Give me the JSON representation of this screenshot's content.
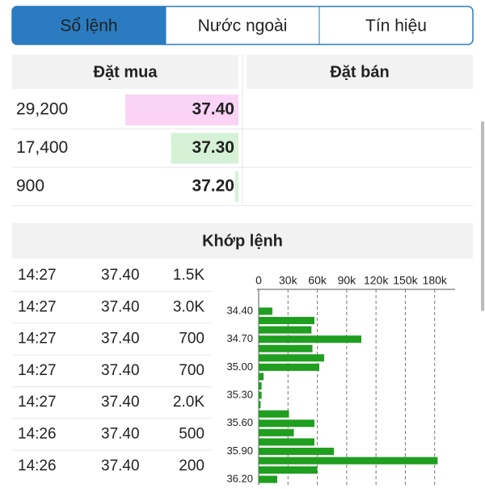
{
  "tabs": [
    {
      "label": "Sổ lệnh",
      "active": true
    },
    {
      "label": "Nước ngoài",
      "active": false
    },
    {
      "label": "Tín hiệu",
      "active": false
    }
  ],
  "order_book": {
    "bid_header": "Đặt mua",
    "ask_header": "Đặt bán",
    "bids": [
      {
        "quantity": {
          "value": 29200,
          "label": "29,200"
        },
        "price": "37.40",
        "color": "#e31fd0",
        "bar_color": "#fbd3f6"
      },
      {
        "quantity": {
          "value": 17400,
          "label": "17,400"
        },
        "price": "37.30",
        "color": "#1ca81c",
        "bar_color": "#d6f2d6"
      },
      {
        "quantity": 900,
        "price": "37.20",
        "color": "#1ca81c",
        "bar_color": "#d6f2d6"
      }
    ]
  },
  "matched": {
    "title": "Khớp lệnh",
    "price_color": "#d52fd0",
    "rows": [
      [
        "14:27",
        "37.40",
        "1.5K"
      ],
      [
        "14:27",
        "37.40",
        "3.0K"
      ],
      [
        "14:27",
        "37.40",
        "700"
      ],
      [
        "14:27",
        "37.40",
        "700"
      ],
      [
        "14:27",
        "37.40",
        "2.0K"
      ],
      [
        "14:26",
        "37.40",
        "500"
      ],
      [
        "14:26",
        "37.40",
        "200"
      ]
    ]
  },
  "chart_data": {
    "type": "bar",
    "orientation": "horizontal",
    "color": "#1f9e1f",
    "grid": true,
    "categories": [
      "34.40",
      null,
      null,
      "34.70",
      null,
      null,
      "35.00",
      null,
      null,
      "35.30",
      null,
      null,
      "35.60",
      null,
      null,
      "35.90",
      null,
      null,
      "36.20"
    ],
    "values": [
      14000,
      57000,
      54000,
      105000,
      55000,
      67000,
      62000,
      5000,
      3000,
      3000,
      2000,
      31000,
      57000,
      36000,
      57000,
      77000,
      183000,
      60000,
      19000
    ],
    "xlim": [
      0,
      186000
    ],
    "xticks": [
      0,
      {
        "value": 30000,
        "label": "30k"
      },
      {
        "value": 60000,
        "label": "60k"
      },
      {
        "value": 90000,
        "label": "90k"
      },
      {
        "value": 120000,
        "label": "120k"
      },
      {
        "value": 150000,
        "label": "150k"
      },
      {
        "value": 180000,
        "label": "180k"
      }
    ]
  }
}
